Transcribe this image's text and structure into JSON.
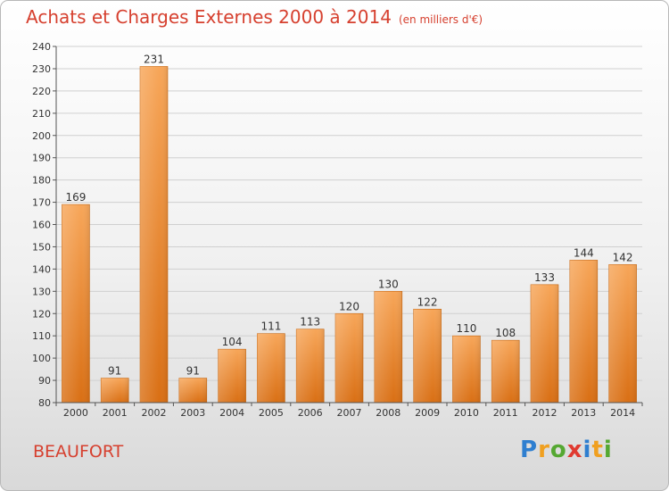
{
  "header": {
    "title": "Achats et Charges Externes 2000 à 2014",
    "subtitle": "(en milliers d'€)"
  },
  "footer": {
    "town": "BEAUFORT",
    "logo_letters": [
      {
        "ch": "P",
        "color": "#2f7fd0"
      },
      {
        "ch": "r",
        "color": "#f0a020"
      },
      {
        "ch": "o",
        "color": "#55a832"
      },
      {
        "ch": "x",
        "color": "#e03a30"
      },
      {
        "ch": "i",
        "color": "#2f7fd0"
      },
      {
        "ch": "t",
        "color": "#f0a020"
      },
      {
        "ch": "i",
        "color": "#55a832"
      }
    ]
  },
  "chart_data": {
    "type": "bar",
    "title": "Achats et Charges Externes 2000 à 2014",
    "subtitle": "(en milliers d'€)",
    "categories": [
      "2000",
      "2001",
      "2002",
      "2003",
      "2004",
      "2005",
      "2006",
      "2007",
      "2008",
      "2009",
      "2010",
      "2011",
      "2012",
      "2013",
      "2014"
    ],
    "values": [
      169,
      91,
      231,
      91,
      104,
      111,
      113,
      120,
      130,
      122,
      110,
      108,
      133,
      144,
      142
    ],
    "ylim": [
      80,
      240
    ],
    "yticks": [
      80,
      90,
      100,
      110,
      120,
      130,
      140,
      150,
      160,
      170,
      180,
      190,
      200,
      210,
      220,
      230,
      240
    ],
    "grid": true,
    "bar_color": "#f0882a"
  }
}
